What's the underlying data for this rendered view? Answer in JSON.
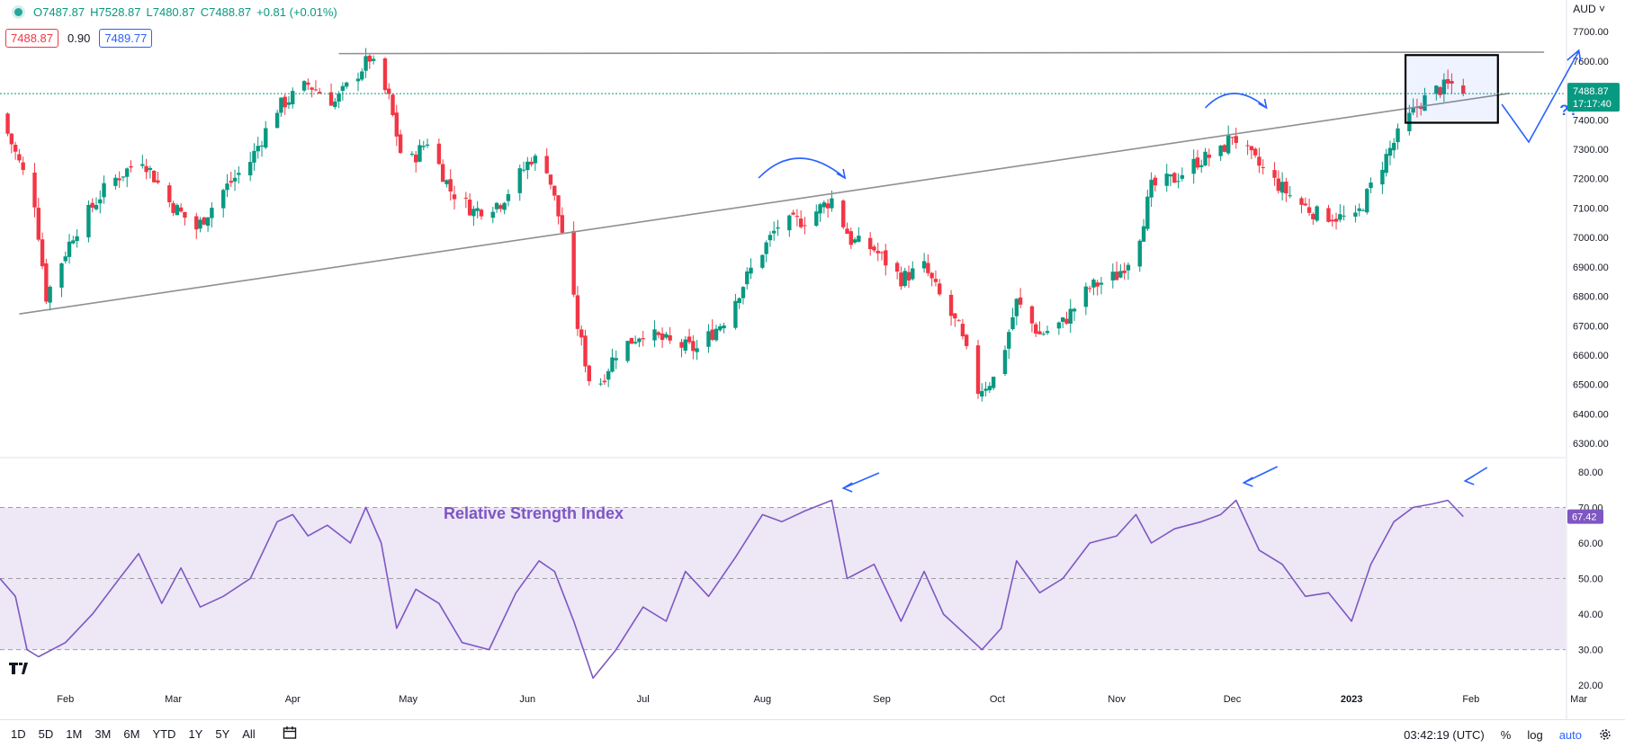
{
  "header": {
    "open": "O7487.87",
    "high": "H7528.87",
    "low": "L7480.87",
    "close": "C7488.87",
    "change": "+0.81 (+0.01%)",
    "sell_quote": "7488.87",
    "spread": "0.90",
    "buy_quote": "7489.77",
    "currency": "AUD"
  },
  "price_tag": {
    "value": "7488.87",
    "countdown": "17:17:40"
  },
  "rsi_tag": "67.42",
  "colors": {
    "up": "#089981",
    "down": "#f23645",
    "rsi_line": "#7e57c2",
    "rsi_band": "#ede7f6",
    "annotation_blue": "#2962ff",
    "trendline": "#8f8f94",
    "price_line": "#089981"
  },
  "annotations": {
    "rsi_title": "Relative Strength Index",
    "question": "??"
  },
  "bottom_bar": {
    "periods": [
      "1D",
      "5D",
      "1M",
      "3M",
      "6M",
      "YTD",
      "1Y",
      "5Y",
      "All"
    ],
    "clock": "03:42:19 (UTC)",
    "percent": "%",
    "log": "log",
    "auto": "auto"
  },
  "icons": [
    "calendar-range-icon",
    "settings-gear-icon",
    "tradingview-logo-icon"
  ],
  "chart_data": [
    {
      "type": "candlestick",
      "title": "",
      "price_axis_ticks": [
        "7700.00",
        "7600.00",
        "7500.00",
        "7400.00",
        "7300.00",
        "7200.00",
        "7100.00",
        "7000.00",
        "6900.00",
        "6800.00",
        "6700.00",
        "6600.00",
        "6500.00",
        "6400.00",
        "6300.00"
      ],
      "ylim": [
        6270,
        7740
      ],
      "x_ticks": [
        "Feb",
        "Mar",
        "Apr",
        "May",
        "Jun",
        "Jul",
        "Aug",
        "Sep",
        "Oct",
        "Nov",
        "Dec",
        "2023",
        "Feb",
        "Mar"
      ],
      "x_tick_dates": [
        "2022-02-01",
        "2022-03-01",
        "2022-04-01",
        "2022-05-01",
        "2022-06-01",
        "2022-07-01",
        "2022-08-01",
        "2022-09-01",
        "2022-10-01",
        "2022-11-01",
        "2022-12-01",
        "2023-01-01",
        "2023-02-01",
        "2023-03-01"
      ],
      "xlim": [
        "2022-01-15",
        "2023-03-13"
      ],
      "last_price": 7488.87,
      "close_path": [
        [
          "2022-01-15",
          7420
        ],
        [
          "2022-01-24",
          7120
        ],
        [
          "2022-01-27",
          6800
        ],
        [
          "2022-02-03",
          7010
        ],
        [
          "2022-02-12",
          7180
        ],
        [
          "2022-02-21",
          7270
        ],
        [
          "2022-02-28",
          7120
        ],
        [
          "2022-03-07",
          7030
        ],
        [
          "2022-03-14",
          7160
        ],
        [
          "2022-03-21",
          7260
        ],
        [
          "2022-03-28",
          7440
        ],
        [
          "2022-04-05",
          7520
        ],
        [
          "2022-04-12",
          7460
        ],
        [
          "2022-04-18",
          7560
        ],
        [
          "2022-04-21",
          7610
        ],
        [
          "2022-04-26",
          7470
        ],
        [
          "2022-04-30",
          7230
        ],
        [
          "2022-05-06",
          7330
        ],
        [
          "2022-05-12",
          7160
        ],
        [
          "2022-05-18",
          7090
        ],
        [
          "2022-05-25",
          7120
        ],
        [
          "2022-06-02",
          7270
        ],
        [
          "2022-06-06",
          7240
        ],
        [
          "2022-06-10",
          7020
        ],
        [
          "2022-06-14",
          6700
        ],
        [
          "2022-06-18",
          6460
        ],
        [
          "2022-06-24",
          6610
        ],
        [
          "2022-07-01",
          6680
        ],
        [
          "2022-07-08",
          6640
        ],
        [
          "2022-07-15",
          6620
        ],
        [
          "2022-07-22",
          6720
        ],
        [
          "2022-07-29",
          6890
        ],
        [
          "2022-08-05",
          7040
        ],
        [
          "2022-08-12",
          7060
        ],
        [
          "2022-08-19",
          7130
        ],
        [
          "2022-08-24",
          6990
        ],
        [
          "2022-08-30",
          6960
        ],
        [
          "2022-09-06",
          6860
        ],
        [
          "2022-09-12",
          6900
        ],
        [
          "2022-09-16",
          6800
        ],
        [
          "2022-09-21",
          6690
        ],
        [
          "2022-09-26",
          6480
        ],
        [
          "2022-10-01",
          6530
        ],
        [
          "2022-10-06",
          6780
        ],
        [
          "2022-10-12",
          6670
        ],
        [
          "2022-10-18",
          6710
        ],
        [
          "2022-10-25",
          6830
        ],
        [
          "2022-11-01",
          6870
        ],
        [
          "2022-11-06",
          6960
        ],
        [
          "2022-11-10",
          7170
        ],
        [
          "2022-11-16",
          7200
        ],
        [
          "2022-11-22",
          7260
        ],
        [
          "2022-11-28",
          7290
        ],
        [
          "2022-12-01",
          7350
        ],
        [
          "2022-12-06",
          7270
        ],
        [
          "2022-12-12",
          7190
        ],
        [
          "2022-12-18",
          7120
        ],
        [
          "2022-12-23",
          7080
        ],
        [
          "2022-12-28",
          7070
        ],
        [
          "2023-01-02",
          7060
        ],
        [
          "2023-01-07",
          7200
        ],
        [
          "2023-01-11",
          7300
        ],
        [
          "2023-01-15",
          7390
        ],
        [
          "2023-01-19",
          7460
        ],
        [
          "2023-01-23",
          7500
        ],
        [
          "2023-01-27",
          7520
        ],
        [
          "2023-01-30",
          7488.87
        ]
      ],
      "trendlines": [
        {
          "from": [
            "2022-01-20",
            6740
          ],
          "to": [
            "2023-02-11",
            7490
          ]
        },
        {
          "from": [
            "2022-04-13",
            7625
          ],
          "to": [
            "2023-02-20",
            7630
          ]
        }
      ],
      "highlight_box": {
        "from": [
          "2023-01-15",
          7390
        ],
        "to": [
          "2023-02-08",
          7620
        ]
      }
    },
    {
      "type": "line",
      "title": "Relative Strength Index",
      "y_ticks": [
        "80.00",
        "70.00",
        "60.00",
        "50.00",
        "40.00",
        "30.00",
        "20.00"
      ],
      "ylim": [
        17,
        82
      ],
      "band": [
        30,
        70
      ],
      "midline": 50,
      "last_value": 67.42,
      "path": [
        [
          "2022-01-15",
          50
        ],
        [
          "2022-01-19",
          45
        ],
        [
          "2022-01-22",
          30
        ],
        [
          "2022-01-25",
          28
        ],
        [
          "2022-02-01",
          32
        ],
        [
          "2022-02-08",
          40
        ],
        [
          "2022-02-15",
          50
        ],
        [
          "2022-02-20",
          57
        ],
        [
          "2022-02-26",
          43
        ],
        [
          "2022-03-03",
          53
        ],
        [
          "2022-03-08",
          42
        ],
        [
          "2022-03-14",
          45
        ],
        [
          "2022-03-21",
          50
        ],
        [
          "2022-03-28",
          66
        ],
        [
          "2022-04-01",
          68
        ],
        [
          "2022-04-05",
          62
        ],
        [
          "2022-04-10",
          65
        ],
        [
          "2022-04-16",
          60
        ],
        [
          "2022-04-20",
          70
        ],
        [
          "2022-04-24",
          60
        ],
        [
          "2022-04-28",
          36
        ],
        [
          "2022-05-03",
          47
        ],
        [
          "2022-05-09",
          43
        ],
        [
          "2022-05-15",
          32
        ],
        [
          "2022-05-22",
          30
        ],
        [
          "2022-05-29",
          46
        ],
        [
          "2022-06-04",
          55
        ],
        [
          "2022-06-08",
          52
        ],
        [
          "2022-06-13",
          38
        ],
        [
          "2022-06-18",
          22
        ],
        [
          "2022-06-24",
          30
        ],
        [
          "2022-07-01",
          42
        ],
        [
          "2022-07-07",
          38
        ],
        [
          "2022-07-12",
          52
        ],
        [
          "2022-07-18",
          45
        ],
        [
          "2022-07-25",
          56
        ],
        [
          "2022-08-01",
          68
        ],
        [
          "2022-08-06",
          66
        ],
        [
          "2022-08-12",
          69
        ],
        [
          "2022-08-19",
          72
        ],
        [
          "2022-08-23",
          50
        ],
        [
          "2022-08-30",
          54
        ],
        [
          "2022-09-06",
          38
        ],
        [
          "2022-09-12",
          52
        ],
        [
          "2022-09-17",
          40
        ],
        [
          "2022-09-22",
          35
        ],
        [
          "2022-09-27",
          30
        ],
        [
          "2022-10-02",
          36
        ],
        [
          "2022-10-06",
          55
        ],
        [
          "2022-10-12",
          46
        ],
        [
          "2022-10-18",
          50
        ],
        [
          "2022-10-25",
          60
        ],
        [
          "2022-11-01",
          62
        ],
        [
          "2022-11-06",
          68
        ],
        [
          "2022-11-10",
          60
        ],
        [
          "2022-11-16",
          64
        ],
        [
          "2022-11-23",
          66
        ],
        [
          "2022-11-28",
          68
        ],
        [
          "2022-12-02",
          72
        ],
        [
          "2022-12-08",
          58
        ],
        [
          "2022-12-14",
          54
        ],
        [
          "2022-12-20",
          45
        ],
        [
          "2022-12-26",
          46
        ],
        [
          "2023-01-01",
          38
        ],
        [
          "2023-01-06",
          54
        ],
        [
          "2023-01-12",
          66
        ],
        [
          "2023-01-17",
          70
        ],
        [
          "2023-01-22",
          71
        ],
        [
          "2023-01-26",
          72
        ],
        [
          "2023-01-30",
          67.42
        ]
      ]
    }
  ]
}
